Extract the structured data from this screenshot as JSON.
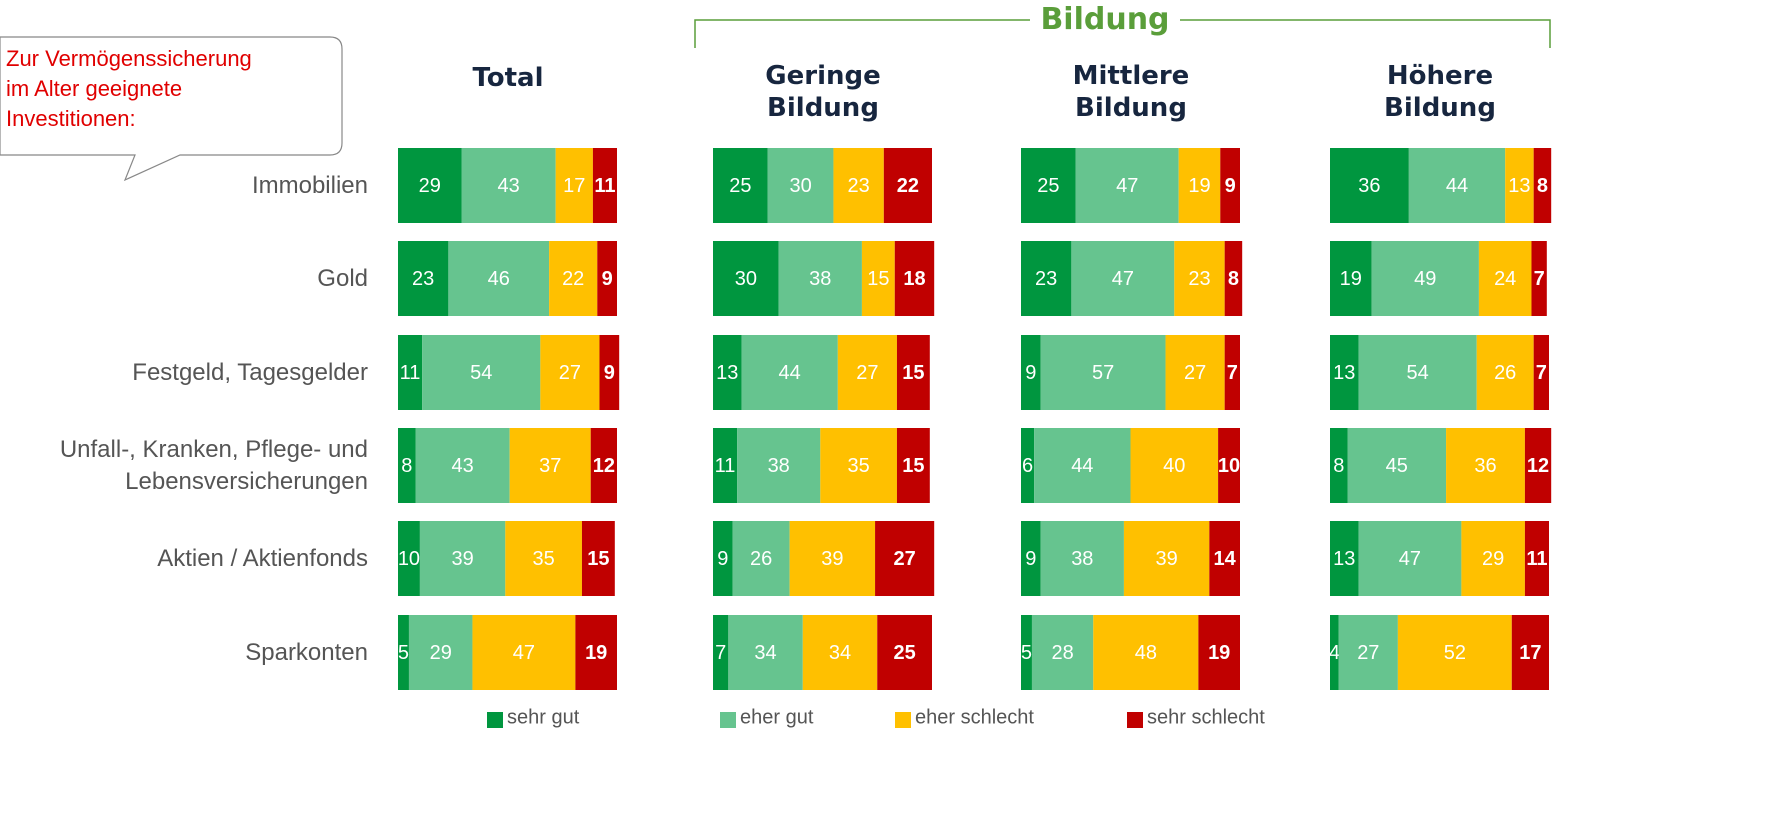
{
  "callout": [
    "Zur Vermögenssicherung",
    "im Alter geeignete",
    "Investitionen:"
  ],
  "group_label": "Bildung",
  "chart_data": [
    {
      "type": "stacked_bar",
      "title": "Total",
      "categories": [
        "Immobilien",
        "Gold",
        "Festgeld, Tagesgelder",
        "Unfall-, Kranken, Pflege- und Lebensversicherungen",
        "Aktien / Aktienfonds",
        "Sparkonten"
      ],
      "series": [
        {
          "name": "sehr gut",
          "color": "#00963f",
          "values": [
            29,
            23,
            11,
            8,
            10,
            5
          ]
        },
        {
          "name": "eher gut",
          "color": "#66c48f",
          "values": [
            43,
            46,
            54,
            43,
            39,
            29
          ]
        },
        {
          "name": "eher schlecht",
          "color": "#ffc000",
          "values": [
            17,
            22,
            27,
            37,
            35,
            47
          ]
        },
        {
          "name": "sehr schlecht",
          "color": "#c00000",
          "values": [
            11,
            9,
            9,
            12,
            15,
            19
          ]
        }
      ]
    },
    {
      "type": "stacked_bar",
      "title": "Geringe Bildung",
      "series": [
        {
          "color": "#00963f",
          "values": [
            25,
            30,
            13,
            11,
            9,
            7
          ]
        },
        {
          "color": "#66c48f",
          "values": [
            30,
            38,
            44,
            38,
            26,
            34
          ]
        },
        {
          "color": "#ffc000",
          "values": [
            23,
            15,
            27,
            35,
            39,
            34
          ]
        },
        {
          "color": "#c00000",
          "values": [
            22,
            18,
            15,
            15,
            27,
            25
          ]
        }
      ]
    },
    {
      "type": "stacked_bar",
      "title": "Mittlere Bildung",
      "series": [
        {
          "color": "#00963f",
          "values": [
            25,
            23,
            9,
            6,
            9,
            5
          ]
        },
        {
          "color": "#66c48f",
          "values": [
            47,
            47,
            57,
            44,
            38,
            28
          ]
        },
        {
          "color": "#ffc000",
          "values": [
            19,
            23,
            27,
            40,
            39,
            48
          ]
        },
        {
          "color": "#c00000",
          "values": [
            9,
            8,
            7,
            10,
            14,
            19
          ]
        }
      ]
    },
    {
      "type": "stacked_bar",
      "title": "Höhere Bildung",
      "series": [
        {
          "color": "#00963f",
          "values": [
            36,
            19,
            13,
            8,
            13,
            4
          ]
        },
        {
          "color": "#66c48f",
          "values": [
            44,
            49,
            54,
            45,
            47,
            27
          ]
        },
        {
          "color": "#ffc000",
          "values": [
            13,
            24,
            26,
            36,
            29,
            52
          ]
        },
        {
          "color": "#c00000",
          "values": [
            8,
            7,
            7,
            12,
            11,
            17
          ]
        }
      ]
    }
  ]
}
